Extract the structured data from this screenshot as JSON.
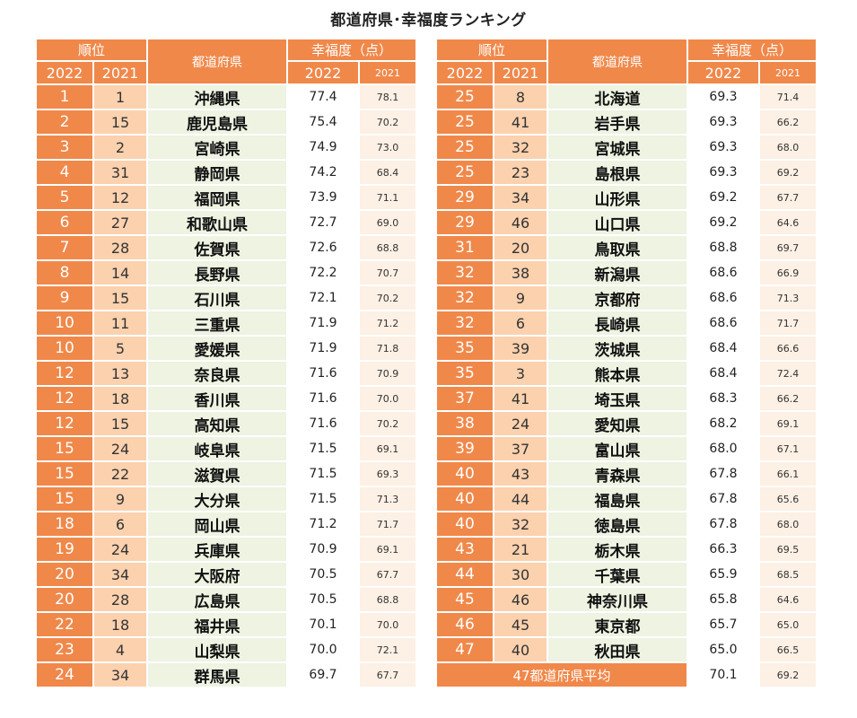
{
  "title": "都道府県･幸福度ランキング",
  "headers": {
    "rank": "順位",
    "prefecture": "都道府県",
    "score": "幸福度（点）",
    "year2022": "2022",
    "year2021": "2021"
  },
  "chart_data": {
    "type": "table",
    "title": "都道府県･幸福度ランキング",
    "columns": [
      "順位 2022",
      "順位 2021",
      "都道府県",
      "幸福度（点） 2022",
      "幸福度（点） 2021"
    ],
    "rows": [
      {
        "rank_2022": "1",
        "rank_2021": "1",
        "prefecture": "沖縄県",
        "score_2022": "77.4",
        "score_2021": "78.1"
      },
      {
        "rank_2022": "2",
        "rank_2021": "15",
        "prefecture": "鹿児島県",
        "score_2022": "75.4",
        "score_2021": "70.2"
      },
      {
        "rank_2022": "3",
        "rank_2021": "2",
        "prefecture": "宮崎県",
        "score_2022": "74.9",
        "score_2021": "73.0"
      },
      {
        "rank_2022": "4",
        "rank_2021": "31",
        "prefecture": "静岡県",
        "score_2022": "74.2",
        "score_2021": "68.4"
      },
      {
        "rank_2022": "5",
        "rank_2021": "12",
        "prefecture": "福岡県",
        "score_2022": "73.9",
        "score_2021": "71.1"
      },
      {
        "rank_2022": "6",
        "rank_2021": "27",
        "prefecture": "和歌山県",
        "score_2022": "72.7",
        "score_2021": "69.0"
      },
      {
        "rank_2022": "7",
        "rank_2021": "28",
        "prefecture": "佐賀県",
        "score_2022": "72.6",
        "score_2021": "68.8"
      },
      {
        "rank_2022": "8",
        "rank_2021": "14",
        "prefecture": "長野県",
        "score_2022": "72.2",
        "score_2021": "70.7"
      },
      {
        "rank_2022": "9",
        "rank_2021": "15",
        "prefecture": "石川県",
        "score_2022": "72.1",
        "score_2021": "70.2"
      },
      {
        "rank_2022": "10",
        "rank_2021": "11",
        "prefecture": "三重県",
        "score_2022": "71.9",
        "score_2021": "71.2"
      },
      {
        "rank_2022": "10",
        "rank_2021": "5",
        "prefecture": "愛媛県",
        "score_2022": "71.9",
        "score_2021": "71.8"
      },
      {
        "rank_2022": "12",
        "rank_2021": "13",
        "prefecture": "奈良県",
        "score_2022": "71.6",
        "score_2021": "70.9"
      },
      {
        "rank_2022": "12",
        "rank_2021": "18",
        "prefecture": "香川県",
        "score_2022": "71.6",
        "score_2021": "70.0"
      },
      {
        "rank_2022": "12",
        "rank_2021": "15",
        "prefecture": "高知県",
        "score_2022": "71.6",
        "score_2021": "70.2"
      },
      {
        "rank_2022": "15",
        "rank_2021": "24",
        "prefecture": "岐阜県",
        "score_2022": "71.5",
        "score_2021": "69.1"
      },
      {
        "rank_2022": "15",
        "rank_2021": "22",
        "prefecture": "滋賀県",
        "score_2022": "71.5",
        "score_2021": "69.3"
      },
      {
        "rank_2022": "15",
        "rank_2021": "9",
        "prefecture": "大分県",
        "score_2022": "71.5",
        "score_2021": "71.3"
      },
      {
        "rank_2022": "18",
        "rank_2021": "6",
        "prefecture": "岡山県",
        "score_2022": "71.2",
        "score_2021": "71.7"
      },
      {
        "rank_2022": "19",
        "rank_2021": "24",
        "prefecture": "兵庫県",
        "score_2022": "70.9",
        "score_2021": "69.1"
      },
      {
        "rank_2022": "20",
        "rank_2021": "34",
        "prefecture": "大阪府",
        "score_2022": "70.5",
        "score_2021": "67.7"
      },
      {
        "rank_2022": "20",
        "rank_2021": "28",
        "prefecture": "広島県",
        "score_2022": "70.5",
        "score_2021": "68.8"
      },
      {
        "rank_2022": "22",
        "rank_2021": "18",
        "prefecture": "福井県",
        "score_2022": "70.1",
        "score_2021": "70.0"
      },
      {
        "rank_2022": "23",
        "rank_2021": "4",
        "prefecture": "山梨県",
        "score_2022": "70.0",
        "score_2021": "72.1"
      },
      {
        "rank_2022": "24",
        "rank_2021": "34",
        "prefecture": "群馬県",
        "score_2022": "69.7",
        "score_2021": "67.7"
      },
      {
        "rank_2022": "25",
        "rank_2021": "8",
        "prefecture": "北海道",
        "score_2022": "69.3",
        "score_2021": "71.4"
      },
      {
        "rank_2022": "25",
        "rank_2021": "41",
        "prefecture": "岩手県",
        "score_2022": "69.3",
        "score_2021": "66.2"
      },
      {
        "rank_2022": "25",
        "rank_2021": "32",
        "prefecture": "宮城県",
        "score_2022": "69.3",
        "score_2021": "68.0"
      },
      {
        "rank_2022": "25",
        "rank_2021": "23",
        "prefecture": "島根県",
        "score_2022": "69.3",
        "score_2021": "69.2"
      },
      {
        "rank_2022": "29",
        "rank_2021": "34",
        "prefecture": "山形県",
        "score_2022": "69.2",
        "score_2021": "67.7"
      },
      {
        "rank_2022": "29",
        "rank_2021": "46",
        "prefecture": "山口県",
        "score_2022": "69.2",
        "score_2021": "64.6"
      },
      {
        "rank_2022": "31",
        "rank_2021": "20",
        "prefecture": "鳥取県",
        "score_2022": "68.8",
        "score_2021": "69.7"
      },
      {
        "rank_2022": "32",
        "rank_2021": "38",
        "prefecture": "新潟県",
        "score_2022": "68.6",
        "score_2021": "66.9"
      },
      {
        "rank_2022": "32",
        "rank_2021": "9",
        "prefecture": "京都府",
        "score_2022": "68.6",
        "score_2021": "71.3"
      },
      {
        "rank_2022": "32",
        "rank_2021": "6",
        "prefecture": "長崎県",
        "score_2022": "68.6",
        "score_2021": "71.7"
      },
      {
        "rank_2022": "35",
        "rank_2021": "39",
        "prefecture": "茨城県",
        "score_2022": "68.4",
        "score_2021": "66.6"
      },
      {
        "rank_2022": "35",
        "rank_2021": "3",
        "prefecture": "熊本県",
        "score_2022": "68.4",
        "score_2021": "72.4"
      },
      {
        "rank_2022": "37",
        "rank_2021": "41",
        "prefecture": "埼玉県",
        "score_2022": "68.3",
        "score_2021": "66.2"
      },
      {
        "rank_2022": "38",
        "rank_2021": "24",
        "prefecture": "愛知県",
        "score_2022": "68.2",
        "score_2021": "69.1"
      },
      {
        "rank_2022": "39",
        "rank_2021": "37",
        "prefecture": "富山県",
        "score_2022": "68.0",
        "score_2021": "67.1"
      },
      {
        "rank_2022": "40",
        "rank_2021": "43",
        "prefecture": "青森県",
        "score_2022": "67.8",
        "score_2021": "66.1"
      },
      {
        "rank_2022": "40",
        "rank_2021": "44",
        "prefecture": "福島県",
        "score_2022": "67.8",
        "score_2021": "65.6"
      },
      {
        "rank_2022": "40",
        "rank_2021": "32",
        "prefecture": "徳島県",
        "score_2022": "67.8",
        "score_2021": "68.0"
      },
      {
        "rank_2022": "43",
        "rank_2021": "21",
        "prefecture": "栃木県",
        "score_2022": "66.3",
        "score_2021": "69.5"
      },
      {
        "rank_2022": "44",
        "rank_2021": "30",
        "prefecture": "千葉県",
        "score_2022": "65.9",
        "score_2021": "68.5"
      },
      {
        "rank_2022": "45",
        "rank_2021": "46",
        "prefecture": "神奈川県",
        "score_2022": "65.8",
        "score_2021": "64.6"
      },
      {
        "rank_2022": "46",
        "rank_2021": "45",
        "prefecture": "東京都",
        "score_2022": "65.7",
        "score_2021": "65.0"
      },
      {
        "rank_2022": "47",
        "rank_2021": "40",
        "prefecture": "秋田県",
        "score_2022": "65.0",
        "score_2021": "66.5"
      }
    ],
    "average": {
      "label": "47都道府県平均",
      "score_2022": "70.1",
      "score_2021": "69.2"
    }
  }
}
